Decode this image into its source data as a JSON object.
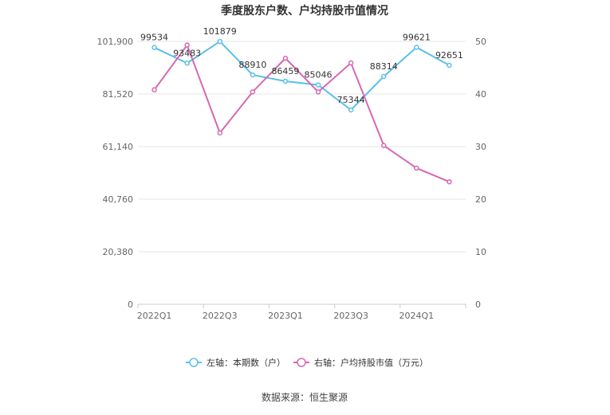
{
  "chart_data": {
    "type": "line",
    "title": "季度股东户数、户均持股市值情况",
    "categories": [
      "2022Q1",
      "2022Q2",
      "2022Q3",
      "2022Q4",
      "2023Q1",
      "2023Q2",
      "2023Q3",
      "2023Q4",
      "2024Q1",
      "2024Q2"
    ],
    "x_tick_labels": [
      "2022Q1",
      "2022Q3",
      "2023Q1",
      "2023Q3",
      "2024Q1"
    ],
    "series": [
      {
        "name": "左轴：本期数（户）",
        "axis": "left",
        "color": "#5bc0e8",
        "values": [
          99534,
          93483,
          101879,
          88910,
          86459,
          85046,
          75344,
          88314,
          99621,
          92651
        ],
        "labels": [
          "99534",
          "93483",
          "101879",
          "88910",
          "86459",
          "85046",
          "75344",
          "88314",
          "99621",
          "92651"
        ]
      },
      {
        "name": "右轴：户均持股市值（万元）",
        "axis": "right",
        "color": "#d668b2",
        "values": [
          40.8,
          49.3,
          32.6,
          40.4,
          46.8,
          40.4,
          45.9,
          30.2,
          25.9,
          23.3
        ]
      }
    ],
    "y_left": {
      "ylim": [
        0,
        101900
      ],
      "ticks": [
        "0",
        "20,380",
        "40,760",
        "61,140",
        "81,520",
        "101,900"
      ]
    },
    "y_right": {
      "ylim": [
        0,
        50
      ],
      "ticks": [
        "0",
        "10",
        "20",
        "30",
        "40",
        "50"
      ]
    },
    "grid": true,
    "legend_position": "bottom"
  },
  "source": "数据来源：恒生聚源"
}
